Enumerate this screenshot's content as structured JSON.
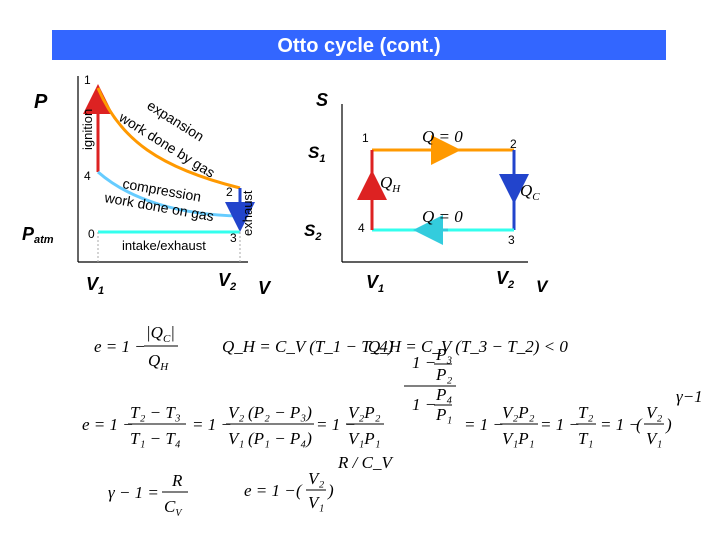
{
  "title": "Otto cycle (cont.)",
  "pv": {
    "p_axis": "P",
    "p_atm": "P",
    "p_atm_sub": "atm",
    "v_axis": "V",
    "v1": "V",
    "v1_sub": "1",
    "v2": "V",
    "v2_sub": "2",
    "ignition": "ignition",
    "exhaust": "exhaust",
    "intake": "intake/exhaust",
    "expansion1": "expansion",
    "expansion2": "work done by gas",
    "compression1": "compression",
    "compression2": "work done on gas",
    "pt0": "0",
    "pt1": "1",
    "pt2": "2",
    "pt3": "3",
    "pt4": "4"
  },
  "ts": {
    "s_axis": "S",
    "s1": "S",
    "s1_sub": "1",
    "s2": "S",
    "s2_sub": "2",
    "v_axis": "V",
    "v1": "V",
    "v1_sub": "1",
    "v2": "V",
    "v2_sub": "2",
    "pt1": "1",
    "pt2": "2",
    "pt3": "3",
    "pt4": "4",
    "q_top": "Q = 0",
    "q_bottom": "Q = 0",
    "qh": "Q",
    "qh_sub": "H",
    "qc": "Q",
    "qc_sub": "C"
  },
  "equations": {
    "eff_def": "e = 1 −",
    "eff_num": "|Q",
    "eff_num_sub": "C",
    "eff_num_end": "|",
    "eff_den": "Q",
    "eff_den_sub": "H",
    "qh_eq": "Q_H = C_V (T_1 − T_4)",
    "qh_eq2": "Q_H = C_V (T_3 − T_2) < 0",
    "gamma_eq": "γ − 1 =",
    "gamma_num": "R",
    "gamma_den": "C_V",
    "e_final": "e = 1 −",
    "exponent": "R / C_V",
    "gamma_exp": "γ−1"
  },
  "colors": {
    "title_bg": "#3366ff",
    "expansion": "#ff9900",
    "compression": "#66ccff",
    "intake": "#33ffee",
    "ignition": "#dd2222",
    "exhaust": "#2244cc",
    "adiabat_top": "#ff9900",
    "adiabat_bottom": "#33ffee"
  }
}
